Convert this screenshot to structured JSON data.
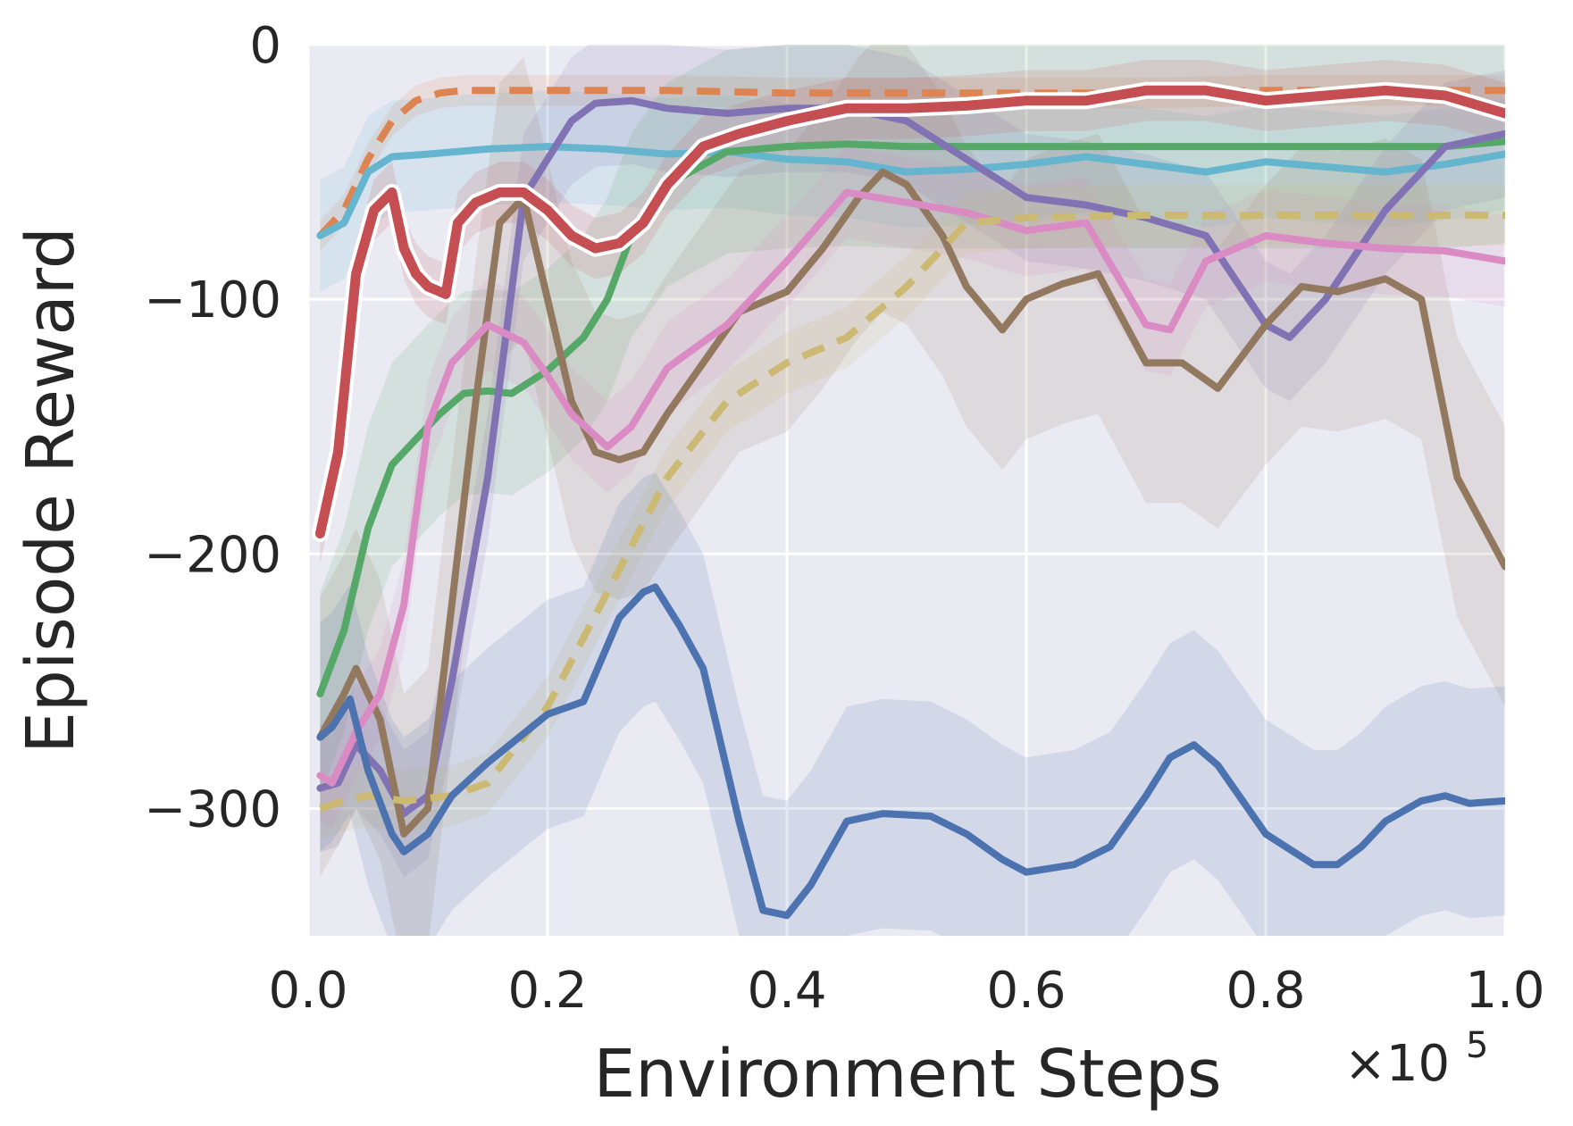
{
  "chart_data": {
    "type": "line",
    "title": "",
    "xlabel": "Environment Steps",
    "ylabel": "Episode Reward",
    "x_multiplier_label": "×10",
    "x_multiplier_exp": "5",
    "xlim": [
      0.0,
      1.0
    ],
    "ylim": [
      -350,
      0
    ],
    "x_ticks": [
      0.0,
      0.2,
      0.4,
      0.6,
      0.8,
      1.0
    ],
    "x_tick_labels": [
      "0.0",
      "0.2",
      "0.4",
      "0.6",
      "0.8",
      "1.0"
    ],
    "y_ticks": [
      0,
      -100,
      -200,
      -300
    ],
    "y_tick_labels": [
      "0",
      "−100",
      "−200",
      "−300"
    ],
    "grid": true,
    "background": "#eaeaf2",
    "series": [
      {
        "color": "#dd8452",
        "dashed": true,
        "width": 8,
        "x": [
          0.01,
          0.03,
          0.05,
          0.07,
          0.09,
          0.11,
          0.13,
          0.15,
          0.2,
          0.3,
          0.4,
          0.5,
          0.6,
          0.7,
          0.8,
          0.9,
          1.0
        ],
        "y": [
          -75,
          -65,
          -45,
          -30,
          -22,
          -19,
          -18,
          -18,
          -18,
          -18,
          -19,
          -19,
          -19,
          -19,
          -18,
          -18,
          -18
        ],
        "band": 6
      },
      {
        "color": "#64b5cd",
        "dashed": false,
        "width": 8,
        "x": [
          0.01,
          0.03,
          0.05,
          0.07,
          0.1,
          0.15,
          0.2,
          0.25,
          0.3,
          0.35,
          0.4,
          0.45,
          0.5,
          0.55,
          0.6,
          0.65,
          0.7,
          0.75,
          0.8,
          0.85,
          0.9,
          0.95,
          1.0
        ],
        "y": [
          -75,
          -70,
          -50,
          -44,
          -43,
          -41,
          -40,
          -41,
          -43,
          -42,
          -45,
          -46,
          -50,
          -49,
          -47,
          -44,
          -47,
          -50,
          -46,
          -48,
          -50,
          -47,
          -43
        ],
        "band": 22
      },
      {
        "color": "#55a868",
        "dashed": false,
        "width": 8,
        "x": [
          0.01,
          0.03,
          0.05,
          0.07,
          0.09,
          0.11,
          0.13,
          0.15,
          0.17,
          0.2,
          0.23,
          0.25,
          0.27,
          0.3,
          0.35,
          0.4,
          0.45,
          0.5,
          0.6,
          0.7,
          0.8,
          0.9,
          0.95,
          1.0
        ],
        "y": [
          -255,
          -230,
          -190,
          -165,
          -155,
          -145,
          -137,
          -136,
          -137,
          -128,
          -115,
          -100,
          -75,
          -55,
          -42,
          -40,
          -39,
          -40,
          -40,
          -40,
          -40,
          -40,
          -40,
          -38
        ],
        "band": 40
      },
      {
        "color": "#8172b3",
        "dashed": false,
        "width": 8,
        "x": [
          0.01,
          0.025,
          0.04,
          0.06,
          0.08,
          0.1,
          0.12,
          0.15,
          0.18,
          0.2,
          0.22,
          0.24,
          0.27,
          0.3,
          0.35,
          0.4,
          0.45,
          0.5,
          0.55,
          0.6,
          0.65,
          0.7,
          0.75,
          0.8,
          0.82,
          0.85,
          0.9,
          0.95,
          1.0
        ],
        "y": [
          -292,
          -290,
          -275,
          -285,
          -302,
          -295,
          -250,
          -170,
          -60,
          -45,
          -30,
          -23,
          -22,
          -25,
          -27,
          -25,
          -25,
          -30,
          -45,
          -60,
          -63,
          -68,
          -75,
          -110,
          -115,
          -100,
          -65,
          -40,
          -35
        ],
        "band": 25
      },
      {
        "color": "#937860",
        "dashed": false,
        "width": 8,
        "x": [
          0.01,
          0.03,
          0.04,
          0.06,
          0.08,
          0.1,
          0.12,
          0.14,
          0.16,
          0.18,
          0.2,
          0.22,
          0.24,
          0.26,
          0.28,
          0.3,
          0.33,
          0.36,
          0.4,
          0.43,
          0.46,
          0.48,
          0.5,
          0.53,
          0.55,
          0.58,
          0.6,
          0.63,
          0.66,
          0.7,
          0.73,
          0.76,
          0.8,
          0.83,
          0.86,
          0.9,
          0.93,
          0.96,
          1.0
        ],
        "y": [
          -272,
          -255,
          -245,
          -265,
          -310,
          -300,
          -220,
          -140,
          -70,
          -60,
          -100,
          -140,
          -160,
          -163,
          -160,
          -145,
          -125,
          -105,
          -97,
          -80,
          -60,
          -50,
          -55,
          -75,
          -95,
          -112,
          -100,
          -94,
          -90,
          -125,
          -125,
          -135,
          -110,
          -95,
          -97,
          -92,
          -100,
          -170,
          -205
        ],
        "band": 55
      },
      {
        "color": "#da8bc3",
        "dashed": false,
        "width": 8,
        "x": [
          0.01,
          0.02,
          0.04,
          0.06,
          0.08,
          0.1,
          0.12,
          0.15,
          0.18,
          0.2,
          0.22,
          0.25,
          0.27,
          0.3,
          0.35,
          0.4,
          0.45,
          0.5,
          0.55,
          0.6,
          0.65,
          0.7,
          0.72,
          0.75,
          0.8,
          0.85,
          0.9,
          0.95,
          1.0
        ],
        "y": [
          -287,
          -290,
          -270,
          -255,
          -220,
          -150,
          -125,
          -110,
          -117,
          -130,
          -145,
          -158,
          -150,
          -127,
          -110,
          -85,
          -58,
          -62,
          -66,
          -73,
          -70,
          -110,
          -112,
          -85,
          -75,
          -78,
          -80,
          -81,
          -85
        ],
        "band": 18
      },
      {
        "color": "#ccb974",
        "dashed": true,
        "width": 8,
        "x": [
          0.01,
          0.03,
          0.05,
          0.08,
          0.1,
          0.12,
          0.15,
          0.2,
          0.25,
          0.3,
          0.35,
          0.4,
          0.45,
          0.5,
          0.55,
          0.6,
          0.7,
          0.8,
          0.9,
          1.0
        ],
        "y": [
          -300,
          -297,
          -295,
          -297,
          -296,
          -295,
          -290,
          -260,
          -215,
          -170,
          -140,
          -125,
          -115,
          -95,
          -70,
          -68,
          -67,
          -67,
          -67,
          -67
        ],
        "band": 12
      },
      {
        "color": "#4c72b0",
        "dashed": false,
        "width": 8,
        "x": [
          0.01,
          0.02,
          0.035,
          0.05,
          0.07,
          0.08,
          0.1,
          0.12,
          0.15,
          0.2,
          0.23,
          0.26,
          0.28,
          0.29,
          0.31,
          0.33,
          0.36,
          0.38,
          0.4,
          0.42,
          0.45,
          0.48,
          0.52,
          0.55,
          0.58,
          0.6,
          0.64,
          0.67,
          0.7,
          0.72,
          0.74,
          0.76,
          0.8,
          0.84,
          0.86,
          0.88,
          0.9,
          0.93,
          0.95,
          0.97,
          1.0
        ],
        "y": [
          -272,
          -268,
          -257,
          -285,
          -310,
          -317,
          -310,
          -295,
          -282,
          -263,
          -258,
          -225,
          -215,
          -213,
          -228,
          -245,
          -305,
          -340,
          -342,
          -330,
          -305,
          -302,
          -303,
          -310,
          -320,
          -325,
          -322,
          -315,
          -295,
          -280,
          -275,
          -283,
          -310,
          -322,
          -322,
          -315,
          -305,
          -297,
          -295,
          -298,
          -297
        ],
        "band": 45
      },
      {
        "color": "#c44e52",
        "dashed": false,
        "width": 11,
        "outline": "#ffffff",
        "x": [
          0.01,
          0.025,
          0.04,
          0.055,
          0.07,
          0.08,
          0.09,
          0.1,
          0.115,
          0.125,
          0.14,
          0.16,
          0.18,
          0.2,
          0.22,
          0.24,
          0.26,
          0.28,
          0.3,
          0.33,
          0.36,
          0.4,
          0.45,
          0.5,
          0.55,
          0.6,
          0.65,
          0.7,
          0.75,
          0.8,
          0.85,
          0.9,
          0.95,
          1.0
        ],
        "y": [
          -192,
          -160,
          -90,
          -65,
          -58,
          -80,
          -90,
          -95,
          -98,
          -70,
          -62,
          -58,
          -58,
          -65,
          -75,
          -80,
          -78,
          -70,
          -55,
          -40,
          -35,
          -30,
          -25,
          -25,
          -24,
          -22,
          -22,
          -18,
          -18,
          -22,
          -20,
          -18,
          -20,
          -27
        ],
        "band": 12
      }
    ]
  }
}
